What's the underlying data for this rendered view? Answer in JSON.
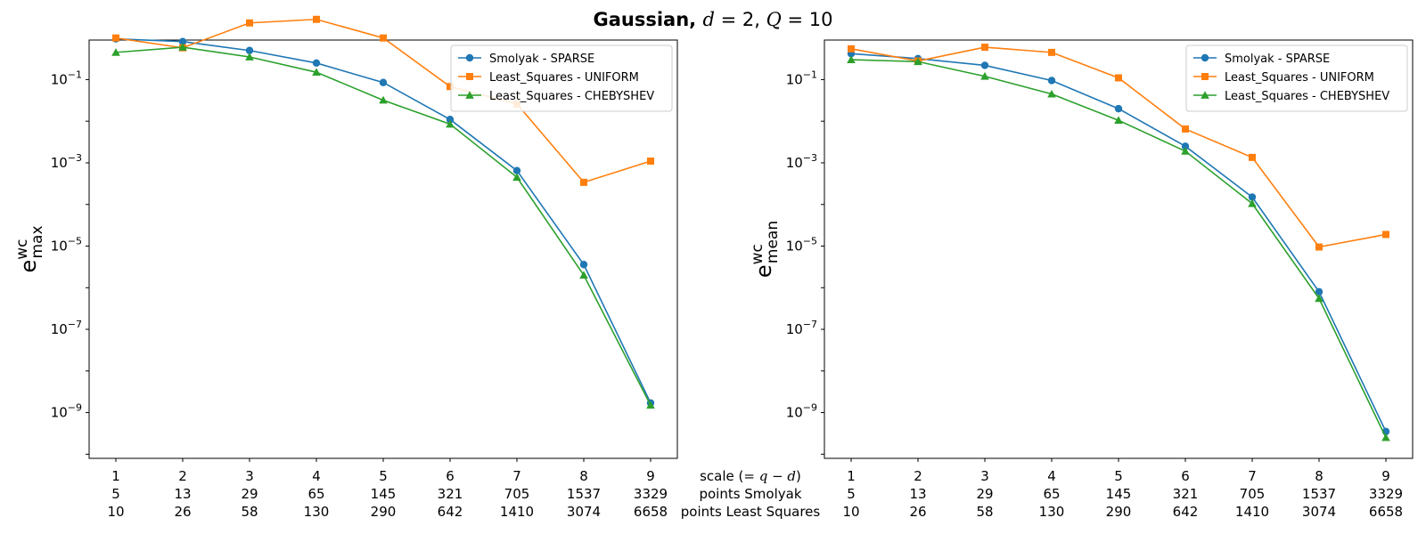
{
  "title": {
    "prefix": "Gaussian, ",
    "parts": [
      {
        "text": "Gaussian, ",
        "bold": true,
        "italic": false
      },
      {
        "text": "d",
        "bold": false,
        "italic": true
      },
      {
        "text": " = 2, ",
        "bold": false,
        "italic": false
      },
      {
        "text": "Q",
        "bold": false,
        "italic": true
      },
      {
        "text": " = 10",
        "bold": false,
        "italic": false
      }
    ]
  },
  "x_rows": {
    "scale": [
      "1",
      "2",
      "3",
      "4",
      "5",
      "6",
      "7",
      "8",
      "9"
    ],
    "points_smolyak": [
      "5",
      "13",
      "29",
      "65",
      "145",
      "321",
      "705",
      "1537",
      "3329"
    ],
    "points_least_squares": [
      "10",
      "26",
      "58",
      "130",
      "290",
      "642",
      "1410",
      "3074",
      "6658"
    ]
  },
  "center_labels": {
    "scale_prefix": "scale (",
    "scale_expr": "= q − d",
    "scale_suffix": ")",
    "smolyak": "points Smolyak",
    "least_squares": "points Least Squares"
  },
  "colors": {
    "smolyak": "#1f77b4",
    "uniform": "#ff7f0e",
    "chebyshev": "#2ca02c"
  },
  "chart_data": [
    {
      "type": "line",
      "yscale": "log",
      "ylabel": {
        "base": "e",
        "sup": "wc",
        "sub": "max"
      },
      "x": [
        1,
        2,
        3,
        4,
        5,
        6,
        7,
        8,
        9
      ],
      "xlim": [
        0.6,
        9.4
      ],
      "ylim_exp": [
        -10.1,
        -0.05
      ],
      "yticks_exp": [
        -1,
        -3,
        -5,
        -7,
        -9
      ],
      "legend_position": "upper right",
      "series": [
        {
          "name": "Smolyak - SPARSE",
          "color": "#1f77b4",
          "marker": "circle",
          "values": [
            0.95,
            0.82,
            0.5,
            0.25,
            0.085,
            0.011,
            0.00065,
            3.6e-06,
            1.7e-09
          ]
        },
        {
          "name": "Least_Squares - UNIFORM",
          "color": "#ff7f0e",
          "marker": "square",
          "values": [
            1.0,
            0.58,
            2.3,
            2.8,
            1.0,
            0.068,
            0.026,
            0.00034,
            0.0011
          ]
        },
        {
          "name": "Least_Squares - CHEBYSHEV",
          "color": "#2ca02c",
          "marker": "triangle",
          "values": [
            0.45,
            0.6,
            0.35,
            0.15,
            0.032,
            0.0085,
            0.00045,
            2e-06,
            1.5e-09
          ]
        }
      ]
    },
    {
      "type": "line",
      "yscale": "log",
      "ylabel": {
        "base": "e",
        "sup": "wc",
        "sub": "mean"
      },
      "x": [
        1,
        2,
        3,
        4,
        5,
        6,
        7,
        8,
        9
      ],
      "xlim": [
        0.6,
        9.4
      ],
      "ylim_exp": [
        -10.1,
        -0.05
      ],
      "yticks_exp": [
        -1,
        -3,
        -5,
        -7,
        -9
      ],
      "legend_position": "upper right",
      "series": [
        {
          "name": "Smolyak - SPARSE",
          "color": "#1f77b4",
          "marker": "circle",
          "values": [
            0.42,
            0.32,
            0.22,
            0.095,
            0.02,
            0.0025,
            0.00015,
            8e-07,
            3.5e-10
          ]
        },
        {
          "name": "Least_Squares - UNIFORM",
          "color": "#ff7f0e",
          "marker": "square",
          "values": [
            0.55,
            0.28,
            0.6,
            0.45,
            0.11,
            0.0065,
            0.00135,
            9.5e-06,
            1.9e-05
          ]
        },
        {
          "name": "Least_Squares - CHEBYSHEV",
          "color": "#2ca02c",
          "marker": "triangle",
          "values": [
            0.3,
            0.27,
            0.12,
            0.045,
            0.0105,
            0.0019,
            0.000105,
            5.5e-07,
            2.5e-10
          ]
        }
      ]
    }
  ]
}
